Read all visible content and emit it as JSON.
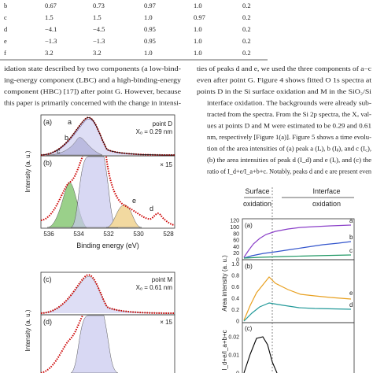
{
  "table": {
    "rows": [
      [
        "b",
        "0.67",
        "0.73",
        "0.97",
        "1.0",
        "0.2"
      ],
      [
        "c",
        "1.5",
        "1.5",
        "1.0",
        "0.97",
        "0.2"
      ],
      [
        "d",
        "−4.1",
        "−4.5",
        "0.95",
        "1.0",
        "0.2"
      ],
      [
        "e",
        "−1.3",
        "−1.3",
        "0.95",
        "1.0",
        "0.2"
      ],
      [
        "f",
        "3.2",
        "3.2",
        "1.0",
        "1.0",
        "0.2"
      ]
    ]
  },
  "text": {
    "left": [
      "idation state described by two components (a low-bind-",
      "ing-energy component (LBC) and a high-binding-energy",
      "component (HBC) [17]) after point G. However, because",
      "this paper is primarily concerned with the change in intensi-"
    ],
    "right": [
      "ties of peaks d and e, we used the three components of a−c",
      "even after point G. Figure 4 shows fitted O 1s spectra at",
      "points D in the Si surface oxidation and M in the SiO₂/Si",
      "interface oxidation. The backgrounds were already sub-",
      "tracted from the spectra. From the Si 2p spectra, the Xₒ val-",
      "ues at points D and M were estimated to be 0.29 and 0.61",
      "nm, respectively [Figure 1(a)]. Figure 5 shows a time evolu-",
      "tion of the area intensities of (a) peak a (Iₐ), b (Iᵦ), and c (I꜀),",
      "(b) the area intensities of peak d (I_d) and e (Iₑ), and (c) the",
      "ratio of I_d+e/I_a+b+c. Notably, peaks d and e are present even"
    ]
  },
  "figure4": {
    "panels": [
      "(a)",
      "(b)",
      "(c)",
      "(d)"
    ],
    "point_d": "point D",
    "xo_d": "Xₒ = 0.29 nm",
    "point_m": "point M",
    "xo_m": "Xₒ = 0.61 nm",
    "peaks": [
      "a",
      "b",
      "c",
      "e",
      "d"
    ],
    "mag": "× 15",
    "ylabel": "Intensity (a. u.)",
    "xlabel": "Binding energy (eV)",
    "xticks": [
      "536",
      "534",
      "532",
      "530",
      "528"
    ]
  },
  "figure5": {
    "phase1": [
      "Surface",
      "oxidation"
    ],
    "phase2": [
      "Interface",
      "oxidation"
    ],
    "panels": [
      "(a)",
      "(b)",
      "(c)"
    ],
    "ylabel_a": "Area intensity (a. u.)",
    "ylabel_c": "I_d+e/I_a+b+c",
    "yticks_a": [
      "0",
      "20",
      "40",
      "60",
      "80",
      "100",
      "120"
    ],
    "yticks_b": [
      "0",
      "0.2",
      "0.4",
      "0.6",
      "0.8",
      "1.0"
    ],
    "yticks_c": [
      "0",
      "0.01",
      "0.02"
    ],
    "series_a": [
      "a",
      "b",
      "c"
    ],
    "series_b": [
      "e",
      "d"
    ]
  }
}
